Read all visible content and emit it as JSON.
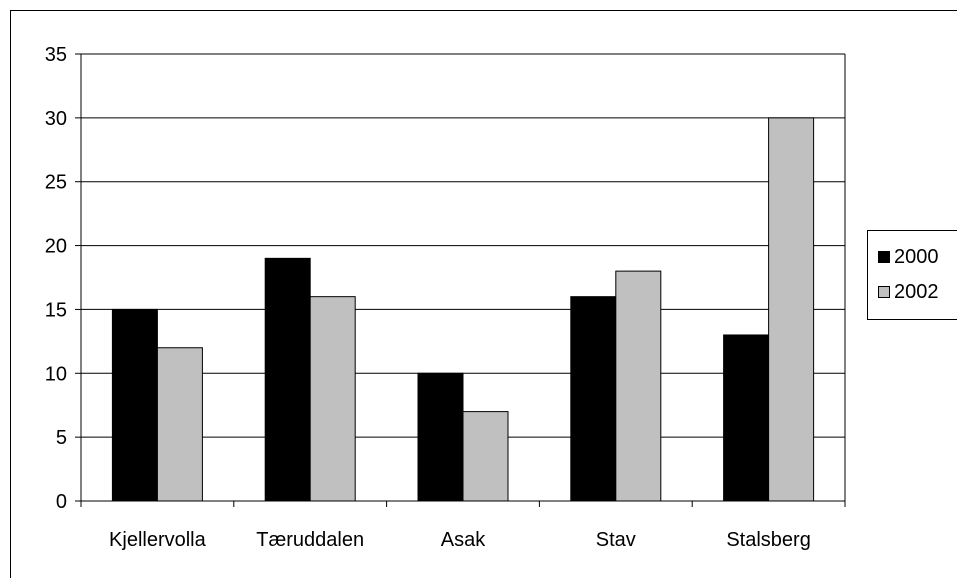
{
  "chart_data": {
    "type": "bar",
    "categories": [
      "Kjellervolla",
      "Tæruddalen",
      "Asak",
      "Stav",
      "Stalsberg"
    ],
    "series": [
      {
        "name": "2000",
        "values": [
          15,
          19,
          10,
          16,
          13
        ],
        "color": "#000000"
      },
      {
        "name": "2002",
        "values": [
          12,
          16,
          7,
          18,
          30
        ],
        "color": "#c0c0c0"
      }
    ],
    "ylim": [
      0,
      35
    ],
    "yticks": [
      "0",
      "5",
      "10",
      "15",
      "20",
      "25",
      "30",
      "35"
    ],
    "grid": true,
    "legend_position": "right",
    "plot_background": "#ffffff",
    "gridline_color": "#000000"
  }
}
